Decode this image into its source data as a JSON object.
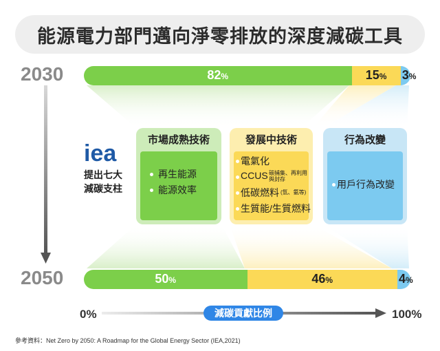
{
  "title": "能源電力部門邁向淨零排放的深度減碳工具",
  "years": {
    "top": "2030",
    "bottom": "2050"
  },
  "iea": {
    "logo": "iea",
    "line1": "提出七大",
    "line2": "減碳支柱"
  },
  "categories": [
    {
      "name": "市場成熟技術",
      "color": "#7ccf4a",
      "items": [
        "再生能源",
        "能源效率"
      ]
    },
    {
      "name": "發展中技術",
      "color": "#fbd957",
      "items": [
        "電氣化",
        "CCUS",
        "低碳燃料",
        "生質能/生質燃料"
      ],
      "ccus_note": [
        "碳捕集、再利用",
        "與封存"
      ],
      "lowcarbon_note": "(氫、氨等)"
    },
    {
      "name": "行為改變",
      "color": "#7ccaf0",
      "items": [
        "用戶行為改變"
      ]
    }
  ],
  "axis": {
    "left": "0%",
    "right": "100%",
    "label": "減碳貢獻比例"
  },
  "reference": "參考資料：Net Zero by 2050: A Roadmap for the Global Energy Sector (IEA,2021)",
  "chart_data": {
    "type": "bar",
    "orientation": "horizontal-stacked-100",
    "categories": [
      "2030",
      "2050"
    ],
    "series": [
      {
        "name": "市場成熟技術",
        "values": [
          82,
          50
        ]
      },
      {
        "name": "發展中技術",
        "values": [
          15,
          46
        ]
      },
      {
        "name": "行為改變",
        "values": [
          3,
          4
        ]
      }
    ],
    "unit": "%",
    "xlim": [
      0,
      100
    ],
    "xlabel": "減碳貢獻比例"
  }
}
